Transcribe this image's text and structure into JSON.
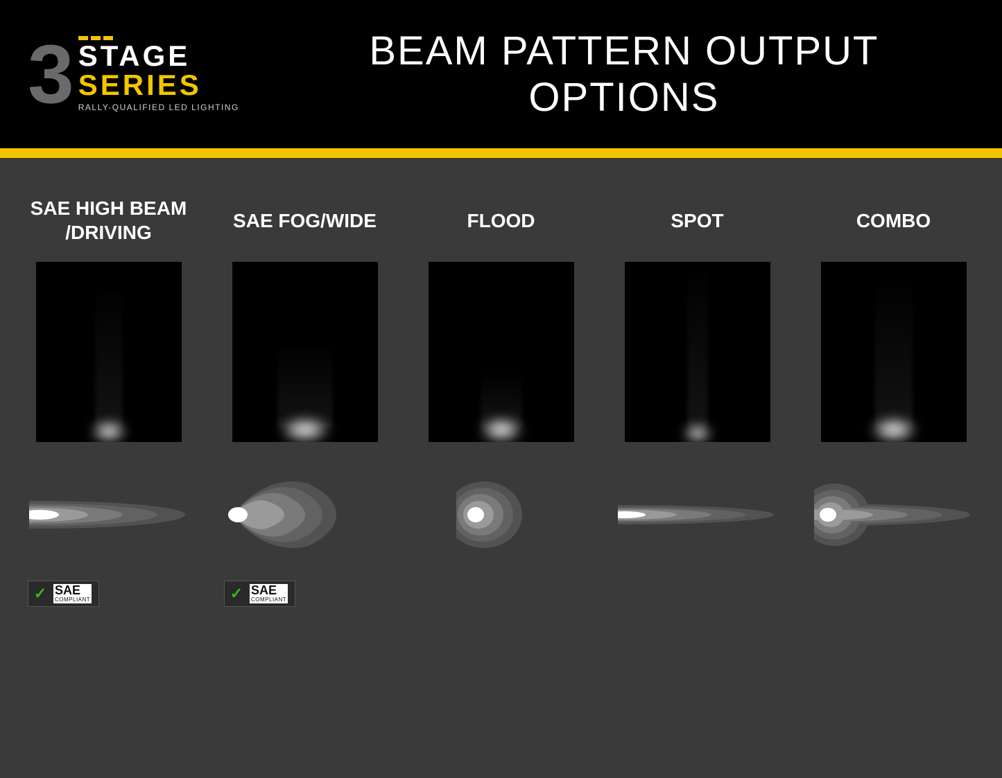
{
  "colors": {
    "header_bg": "#000000",
    "content_bg": "#3a3a3a",
    "accent": "#f2c500",
    "text_light": "#ffffff",
    "text_muted": "#d0d0d0",
    "logo_gray": "#6a6a6a",
    "photo_bg": "#000000",
    "pattern_1": "#ffffff",
    "pattern_2": "#9a9a9a",
    "pattern_3": "#7a7a7a",
    "pattern_4": "#626262",
    "pattern_5": "#525252",
    "badge_bg": "#2a2a2a",
    "badge_check": "#3fb618"
  },
  "logo": {
    "number": "3",
    "line1": "STAGE",
    "line2": "SERIES",
    "tagline": "RALLY-QUALIFIED LED LIGHTING"
  },
  "title": "BEAM PATTERN OUTPUT OPTIONS",
  "badge": {
    "label": "SAE",
    "sub": "COMPLIANT",
    "check": "✓"
  },
  "patterns": [
    {
      "name": "SAE HIGH BEAM /DRIVING",
      "type": "narrow-long",
      "photo": {
        "glow_w": 50,
        "glow_h": 30,
        "trail_h": 200,
        "trail_w": 40
      },
      "sae": true
    },
    {
      "name": "SAE FOG/WIDE",
      "type": "wide-short",
      "photo": {
        "glow_w": 70,
        "glow_h": 35,
        "trail_h": 120,
        "trail_w": 80
      },
      "sae": true
    },
    {
      "name": "FLOOD",
      "type": "round",
      "photo": {
        "glow_w": 60,
        "glow_h": 35,
        "trail_h": 80,
        "trail_w": 60
      },
      "sae": false
    },
    {
      "name": "SPOT",
      "type": "very-narrow-long",
      "photo": {
        "glow_w": 40,
        "glow_h": 25,
        "trail_h": 230,
        "trail_w": 30
      },
      "sae": false
    },
    {
      "name": "COMBO",
      "type": "combo",
      "photo": {
        "glow_w": 65,
        "glow_h": 35,
        "trail_h": 210,
        "trail_w": 55
      },
      "sae": false
    }
  ]
}
